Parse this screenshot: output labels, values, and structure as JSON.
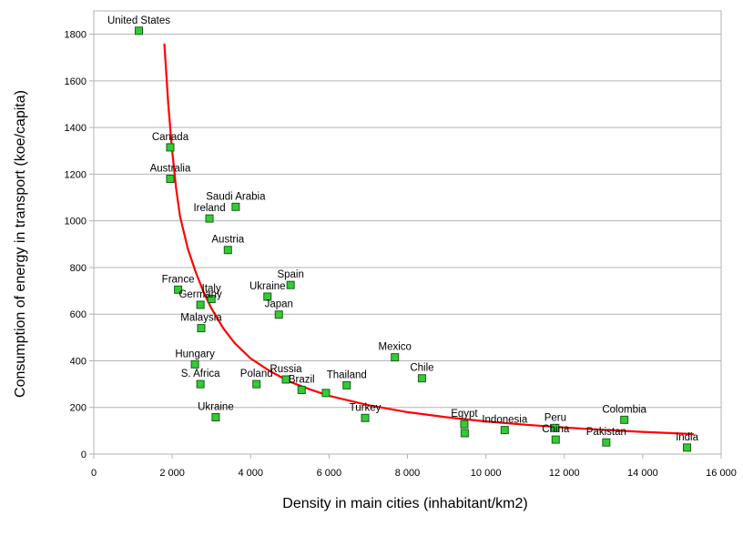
{
  "chart_data": {
    "type": "scatter",
    "title": "",
    "xlabel": "Density in main cities (inhabitant/km2)",
    "ylabel": "Consumption of energy in transport (koe/capita)",
    "xlim": [
      0,
      16000
    ],
    "ylim": [
      0,
      1900
    ],
    "xticks": [
      0,
      2000,
      4000,
      6000,
      8000,
      10000,
      12000,
      14000,
      16000
    ],
    "xtick_labels": [
      "0",
      "2 000",
      "4 000",
      "6 000",
      "8 000",
      "10 000",
      "12 000",
      "14 000",
      "16 000"
    ],
    "yticks": [
      0,
      200,
      400,
      600,
      800,
      1000,
      1200,
      1400,
      1600,
      1800
    ],
    "ytick_labels": [
      "0",
      "200",
      "400",
      "600",
      "800",
      "1000",
      "1200",
      "1400",
      "1600",
      "1800"
    ],
    "grid": "horizontal",
    "marker_color": "#33cc33",
    "marker_edge_color": "#1a5c1a",
    "trend_color": "#ff0000",
    "points": [
      {
        "label": "United States",
        "x": 1150,
        "y": 1815
      },
      {
        "label": "Canada",
        "x": 1950,
        "y": 1315
      },
      {
        "label": "Australia",
        "x": 1950,
        "y": 1180
      },
      {
        "label": "Saudi Arabia",
        "x": 3620,
        "y": 1060
      },
      {
        "label": "Ireland",
        "x": 2950,
        "y": 1010
      },
      {
        "label": "Austria",
        "x": 3420,
        "y": 875
      },
      {
        "label": "Spain",
        "x": 5020,
        "y": 725
      },
      {
        "label": "France",
        "x": 2150,
        "y": 705
      },
      {
        "label": "Ukraine",
        "x": 4430,
        "y": 675
      },
      {
        "label": "Italy",
        "x": 3000,
        "y": 665
      },
      {
        "label": "Germany",
        "x": 2720,
        "y": 640
      },
      {
        "label": "Japan",
        "x": 4720,
        "y": 598
      },
      {
        "label": "Malaysia",
        "x": 2740,
        "y": 540
      },
      {
        "label": "Mexico",
        "x": 7680,
        "y": 415
      },
      {
        "label": "Hungary",
        "x": 2580,
        "y": 385
      },
      {
        "label": "Chile",
        "x": 8370,
        "y": 325
      },
      {
        "label": "Russia",
        "x": 4900,
        "y": 320
      },
      {
        "label": "Poland",
        "x": 4150,
        "y": 300
      },
      {
        "label": "S. Africa",
        "x": 2720,
        "y": 300
      },
      {
        "label": "Thailand",
        "x": 6450,
        "y": 295
      },
      {
        "label": "Brazil",
        "x": 5300,
        "y": 275
      },
      {
        "label": "",
        "x": 5920,
        "y": 262
      },
      {
        "label": "Ukraine",
        "x": 3110,
        "y": 158
      },
      {
        "label": "Turkey",
        "x": 6920,
        "y": 155
      },
      {
        "label": "Colombia",
        "x": 13530,
        "y": 147
      },
      {
        "label": "Egypt",
        "x": 9450,
        "y": 128
      },
      {
        "label": "Indonesia",
        "x": 10480,
        "y": 103
      },
      {
        "label": "Peru",
        "x": 11770,
        "y": 112
      },
      {
        "label": "",
        "x": 9460,
        "y": 90
      },
      {
        "label": "China",
        "x": 11780,
        "y": 62
      },
      {
        "label": "Pakistan",
        "x": 13070,
        "y": 50
      },
      {
        "label": "India",
        "x": 15130,
        "y": 28
      }
    ],
    "trendline": {
      "type": "power",
      "x_start": 1800,
      "x_end": 15300,
      "points": [
        [
          1800,
          1760
        ],
        [
          1900,
          1500
        ],
        [
          2000,
          1300
        ],
        [
          2100,
          1140
        ],
        [
          2200,
          1020
        ],
        [
          2400,
          880
        ],
        [
          2600,
          780
        ],
        [
          2800,
          695
        ],
        [
          3000,
          625
        ],
        [
          3300,
          540
        ],
        [
          3600,
          475
        ],
        [
          4000,
          410
        ],
        [
          4500,
          355
        ],
        [
          5000,
          310
        ],
        [
          5500,
          278
        ],
        [
          6000,
          250
        ],
        [
          7000,
          210
        ],
        [
          8000,
          180
        ],
        [
          9000,
          158
        ],
        [
          10000,
          140
        ],
        [
          11000,
          126
        ],
        [
          12000,
          114
        ],
        [
          13000,
          104
        ],
        [
          14000,
          95
        ],
        [
          15300,
          86
        ]
      ]
    }
  }
}
